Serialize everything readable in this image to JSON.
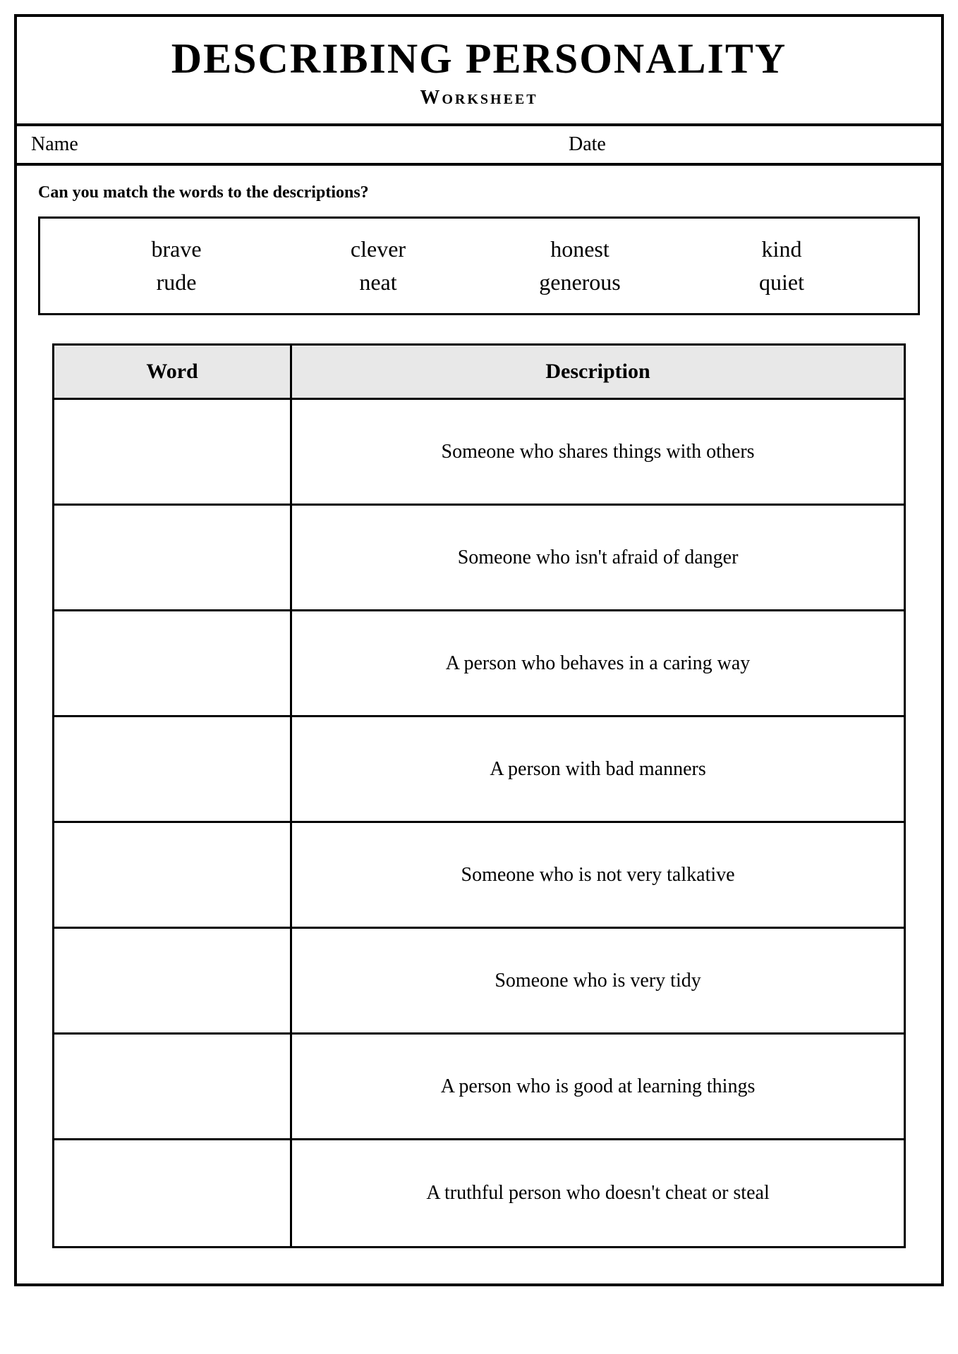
{
  "header": {
    "title": "DESCRIBING PERSONALITY",
    "subtitle": "Worksheet"
  },
  "fields": {
    "name_label": "Name",
    "date_label": "Date"
  },
  "question": "Can you match the words to the descriptions?",
  "wordbank": {
    "row1": [
      "brave",
      "clever",
      "honest",
      "kind"
    ],
    "row2": [
      "rude",
      "neat",
      "generous",
      "quiet"
    ]
  },
  "table": {
    "col_word": "Word",
    "col_desc": "Description",
    "rows": [
      {
        "word": "",
        "description": "Someone who shares things with others"
      },
      {
        "word": "",
        "description": "Someone who isn't afraid of danger"
      },
      {
        "word": "",
        "description": "A person who behaves in a caring way"
      },
      {
        "word": "",
        "description": "A person with bad manners"
      },
      {
        "word": "",
        "description": "Someone who is not very talkative"
      },
      {
        "word": "",
        "description": "Someone who is very tidy"
      },
      {
        "word": "",
        "description": "A person who is good at learning things"
      },
      {
        "word": "",
        "description": "A truthful person who doesn't cheat or steal"
      }
    ]
  },
  "colors": {
    "border": "#000000",
    "background": "#ffffff",
    "header_bg": "#e8e8e8"
  }
}
